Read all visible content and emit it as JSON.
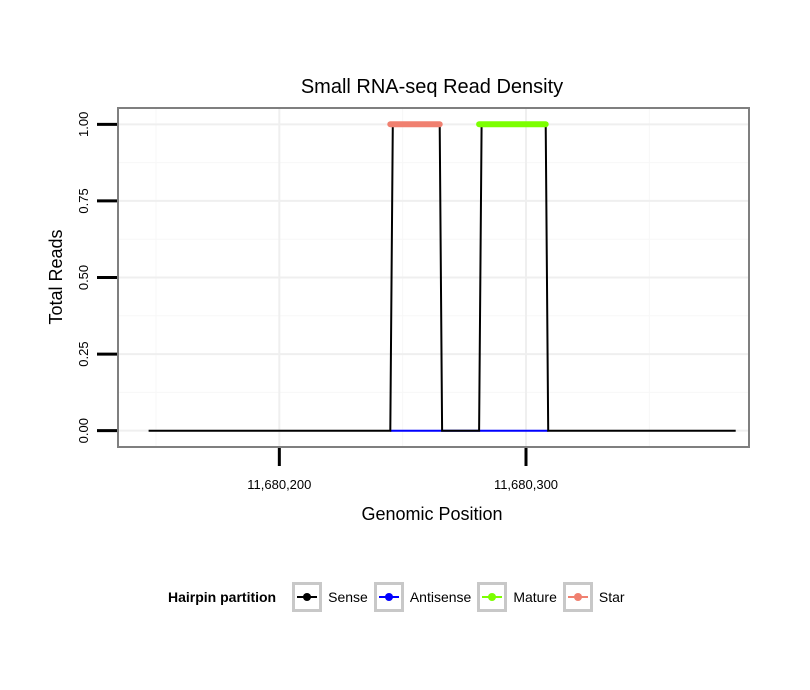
{
  "chart_data": {
    "type": "line",
    "title": "Small RNA-seq Read Density",
    "xlabel": "Genomic Position",
    "ylabel": "Total Reads",
    "xlim": [
      11680135,
      11680390
    ],
    "ylim": [
      -0.05,
      1.05
    ],
    "x_ticks": [
      11680200,
      11680300
    ],
    "x_tick_labels": [
      "11,680,200",
      "11,680,300"
    ],
    "y_ticks": [
      0,
      0.25,
      0.5,
      0.75,
      1.0
    ],
    "y_tick_labels": [
      "0.00",
      "0.25",
      "0.50",
      "0.75",
      "1.00"
    ],
    "grid": true,
    "legend_title": "Hairpin partition",
    "legend_position": "bottom",
    "series": [
      {
        "name": "Sense",
        "color": "#000000",
        "x": [
          11680147,
          11680245,
          11680246,
          11680265,
          11680266,
          11680281,
          11680282,
          11680308,
          11680309,
          11680385
        ],
        "y": [
          0,
          0,
          1,
          1,
          0,
          0,
          1,
          1,
          0,
          0
        ]
      },
      {
        "name": "Antisense",
        "color": "#0000ff",
        "x": [
          11680245,
          11680309
        ],
        "y": [
          0,
          0
        ]
      },
      {
        "name": "Mature",
        "color": "#7cff00",
        "x": [
          11680281,
          11680308
        ],
        "y": [
          1,
          1
        ]
      },
      {
        "name": "Star",
        "color": "#f08070",
        "x": [
          11680245,
          11680265
        ],
        "y": [
          1,
          1
        ]
      }
    ]
  }
}
